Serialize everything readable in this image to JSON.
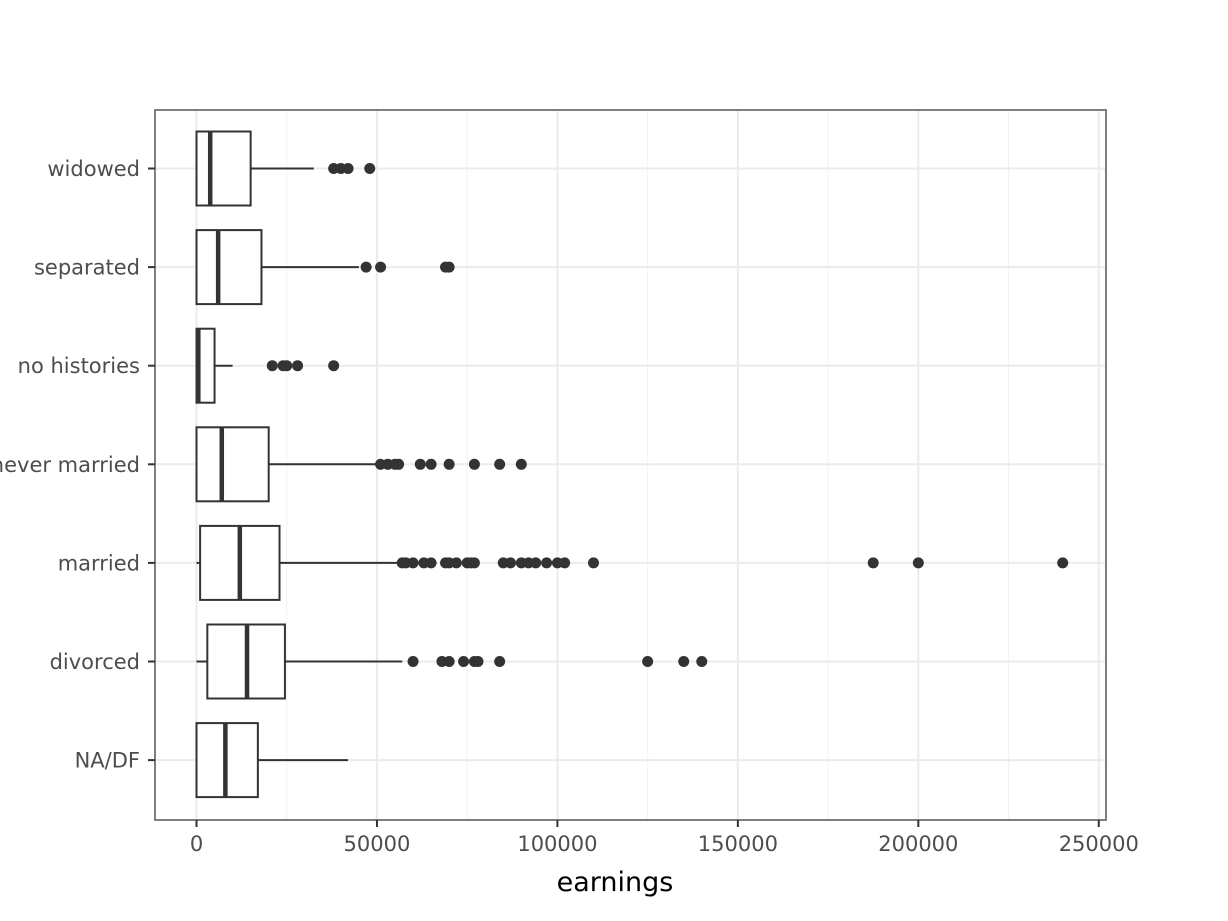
{
  "chart_data": {
    "type": "boxplot",
    "orientation": "horizontal",
    "title": "",
    "xlabel": "earnings",
    "ylabel": "",
    "xlim": [
      -11500,
      252000
    ],
    "x_ticks": [
      0,
      50000,
      100000,
      150000,
      200000,
      250000
    ],
    "x_tick_labels": [
      "0",
      "50000",
      "100000",
      "150000",
      "200000",
      "250000"
    ],
    "grid": true,
    "colors": {
      "box_stroke": "#333333",
      "outlier": "#333333",
      "grid": "#ebebeb",
      "panel_border": "#7f7f7f"
    },
    "categories": [
      "widowed",
      "separated",
      "no histories",
      "never married",
      "married",
      "divorced",
      "NA/DF"
    ],
    "boxes": [
      {
        "category": "widowed",
        "whisker_low": 0,
        "q1": 0,
        "median": 3800,
        "q3": 15000,
        "whisker_high": 32500,
        "outliers": [
          38000,
          40000,
          42000,
          48000
        ]
      },
      {
        "category": "separated",
        "whisker_low": 0,
        "q1": 0,
        "median": 6000,
        "q3": 18000,
        "whisker_high": 45000,
        "outliers": [
          47000,
          51000,
          69000,
          70000
        ]
      },
      {
        "category": "no histories",
        "whisker_low": 0,
        "q1": 0,
        "median": 500,
        "q3": 5000,
        "whisker_high": 10000,
        "outliers": [
          21000,
          24000,
          25000,
          28000,
          38000
        ]
      },
      {
        "category": "never married",
        "whisker_low": 0,
        "q1": 0,
        "median": 7000,
        "q3": 20000,
        "whisker_high": 50000,
        "outliers": [
          51000,
          53000,
          55000,
          56000,
          62000,
          65000,
          70000,
          77000,
          84000,
          90000
        ]
      },
      {
        "category": "married",
        "whisker_low": 0,
        "q1": 1000,
        "median": 12000,
        "q3": 23000,
        "whisker_high": 56000,
        "outliers": [
          57000,
          58000,
          60000,
          63000,
          65000,
          69000,
          70000,
          72000,
          75000,
          76000,
          77000,
          85000,
          87000,
          90000,
          92000,
          94000,
          97000,
          100000,
          102000,
          110000,
          187500,
          200000,
          240000
        ]
      },
      {
        "category": "divorced",
        "whisker_low": 0,
        "q1": 3000,
        "median": 14000,
        "q3": 24500,
        "whisker_high": 57000,
        "outliers": [
          60000,
          68000,
          70000,
          74000,
          77000,
          78000,
          84000,
          125000,
          135000,
          140000
        ]
      },
      {
        "category": "NA/DF",
        "whisker_low": 0,
        "q1": 0,
        "median": 8000,
        "q3": 17000,
        "whisker_high": 42000,
        "outliers": []
      }
    ]
  }
}
